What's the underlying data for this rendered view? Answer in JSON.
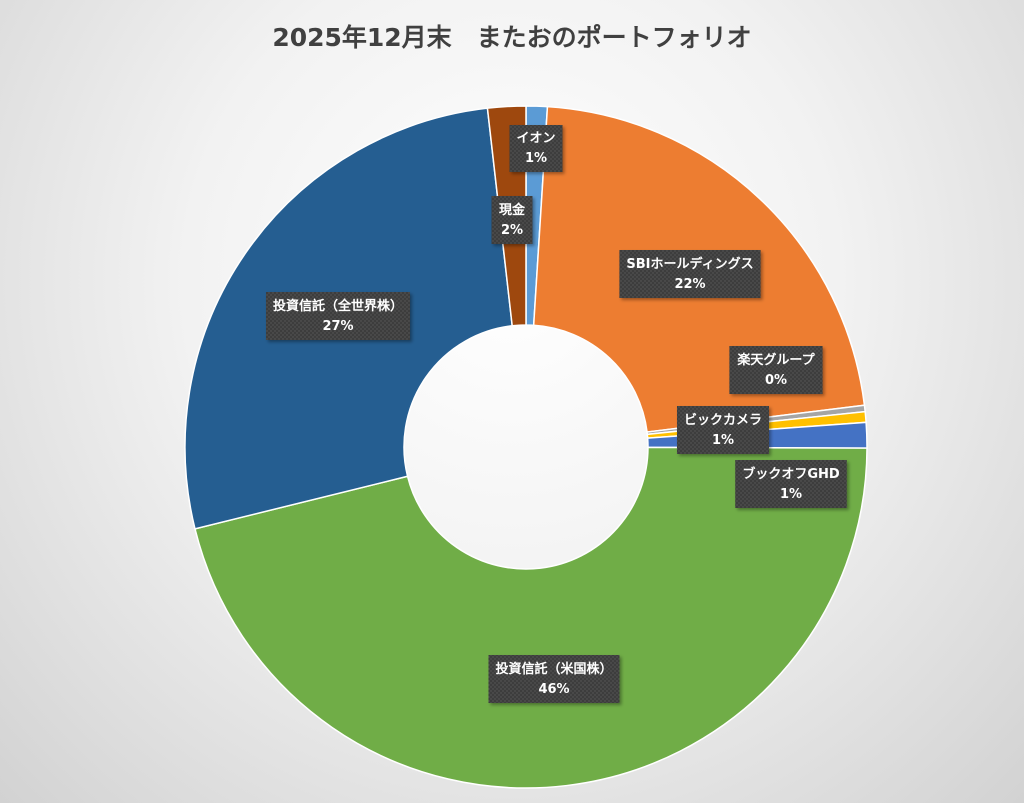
{
  "chart_data": {
    "type": "pie",
    "title": "2025年12月末　またおのポートフォリオ",
    "hole": true,
    "slices": [
      {
        "label": "イオン",
        "value": 1,
        "value_label": "1%",
        "color": "#5b9bd5"
      },
      {
        "label": "SBIホールディングス",
        "value": 22,
        "value_label": "22%",
        "color": "#ed7d31"
      },
      {
        "label": "楽天グループ",
        "value": 0.3,
        "value_label": "0%",
        "color": "#a5a5a5"
      },
      {
        "label": "ビックカメラ",
        "value": 0.5,
        "value_label": "1%",
        "color": "#ffc000"
      },
      {
        "label": "ブックオフGHD",
        "value": 1.2,
        "value_label": "1%",
        "color": "#4472c4"
      },
      {
        "label": "投資信託（米国株）",
        "value": 46,
        "value_label": "46%",
        "color": "#70ad47"
      },
      {
        "label": "投資信託（全世界株）",
        "value": 27,
        "value_label": "27%",
        "color": "#255e91"
      },
      {
        "label": "現金",
        "value": 1.8,
        "value_label": "2%",
        "color": "#9e480e"
      }
    ]
  }
}
